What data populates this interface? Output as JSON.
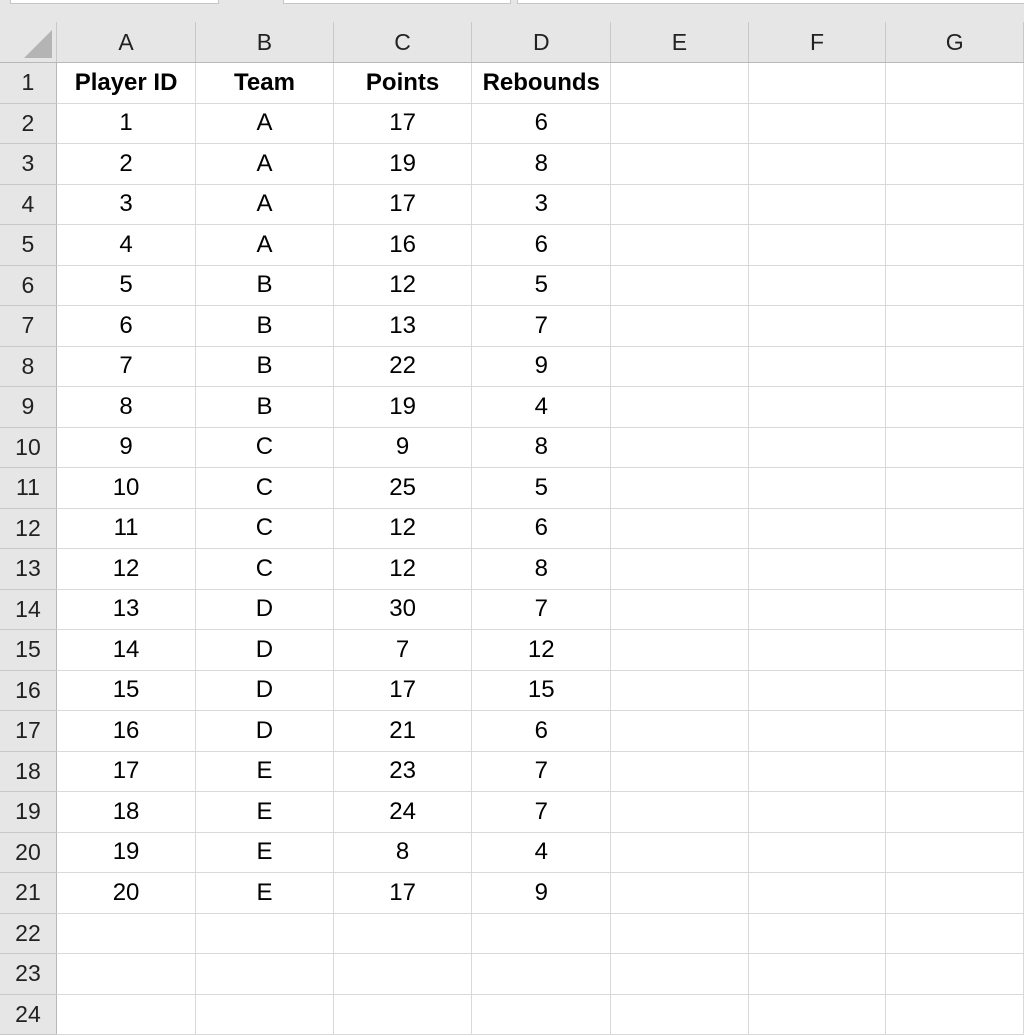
{
  "columns": [
    "A",
    "B",
    "C",
    "D",
    "E",
    "F",
    "G"
  ],
  "headers": [
    "Player ID",
    "Team",
    "Points",
    "Rebounds"
  ],
  "rows": [
    [
      "1",
      "A",
      "17",
      "6"
    ],
    [
      "2",
      "A",
      "19",
      "8"
    ],
    [
      "3",
      "A",
      "17",
      "3"
    ],
    [
      "4",
      "A",
      "16",
      "6"
    ],
    [
      "5",
      "B",
      "12",
      "5"
    ],
    [
      "6",
      "B",
      "13",
      "7"
    ],
    [
      "7",
      "B",
      "22",
      "9"
    ],
    [
      "8",
      "B",
      "19",
      "4"
    ],
    [
      "9",
      "C",
      "9",
      "8"
    ],
    [
      "10",
      "C",
      "25",
      "5"
    ],
    [
      "11",
      "C",
      "12",
      "6"
    ],
    [
      "12",
      "C",
      "12",
      "8"
    ],
    [
      "13",
      "D",
      "30",
      "7"
    ],
    [
      "14",
      "D",
      "7",
      "12"
    ],
    [
      "15",
      "D",
      "17",
      "15"
    ],
    [
      "16",
      "D",
      "21",
      "6"
    ],
    [
      "17",
      "E",
      "23",
      "7"
    ],
    [
      "18",
      "E",
      "24",
      "7"
    ],
    [
      "19",
      "E",
      "8",
      "4"
    ],
    [
      "20",
      "E",
      "17",
      "9"
    ]
  ],
  "total_visible_rows": 24
}
